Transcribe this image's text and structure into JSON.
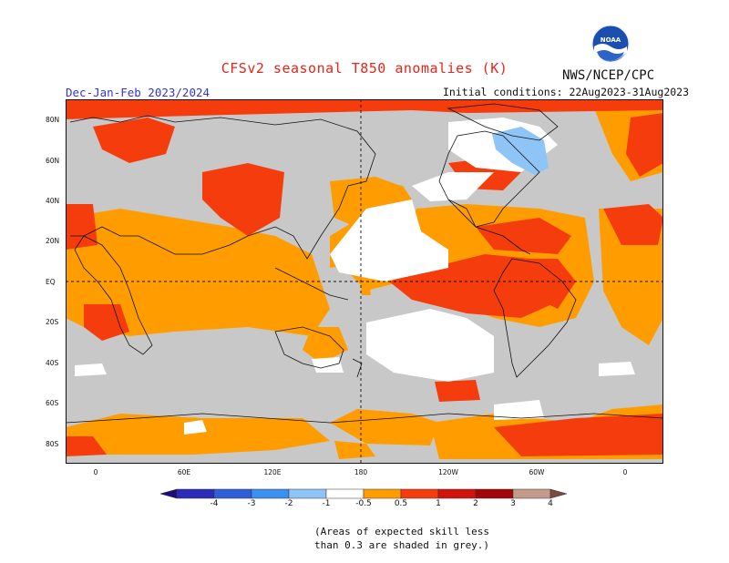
{
  "header": {
    "title": "CFSv2 seasonal T850 anomalies (K)",
    "agency": "NWS/NCEP/CPC",
    "season": "Dec-Jan-Feb 2023/2024",
    "initial_conditions": "Initial conditions: 22Aug2023-31Aug2023",
    "logo_text": "NOAA"
  },
  "map": {
    "projection": "cylindrical",
    "lon_range": [
      -20,
      380
    ],
    "lat_range": [
      -90,
      90
    ],
    "lat_labels": [
      "80N",
      "60N",
      "40N",
      "20N",
      "EQ",
      "20S",
      "40S",
      "60S",
      "80S"
    ],
    "lon_labels": [
      "0",
      "60E",
      "120E",
      "180",
      "120W",
      "60W",
      "0"
    ],
    "reference_lines": [
      "equator",
      "dateline"
    ]
  },
  "colorbar": {
    "labels": [
      "-4",
      "-3",
      "-2",
      "-1",
      "-0.5",
      "0.5",
      "1",
      "2",
      "3",
      "4"
    ],
    "colors": [
      "#1e0a78",
      "#2c2ab8",
      "#2f5fd8",
      "#3a8ff0",
      "#8ec4f6",
      "#ffffff",
      "#ff9d00",
      "#f53c0d",
      "#d1130e",
      "#a3060a",
      "#c49a8a",
      "#7e4a40"
    ],
    "grey_color": "#c8c8c8"
  },
  "note": {
    "line1": "(Areas of expected skill less",
    "line2": "than 0.3 are shaded in grey.)"
  },
  "chart_data": {
    "type": "heatmap",
    "variable": "T850 anomaly (K)",
    "skill_mask_color": "grey",
    "regions": [
      {
        "name": "Equatorial central-east Pacific",
        "level": "1 to 2"
      },
      {
        "name": "Tropical South America",
        "level": "1 to 2"
      },
      {
        "name": "Caribbean / Gulf of Mexico",
        "level": "1 to 2"
      },
      {
        "name": "North-east Canada / Greenland",
        "level": "-0.5 to -1"
      },
      {
        "name": "Arctic",
        "level": "1 to 2"
      },
      {
        "name": "Tropical Indian Ocean",
        "level": "0.5 to 1"
      },
      {
        "name": "Antarctica coast",
        "level": "0.5 to 2"
      }
    ]
  }
}
